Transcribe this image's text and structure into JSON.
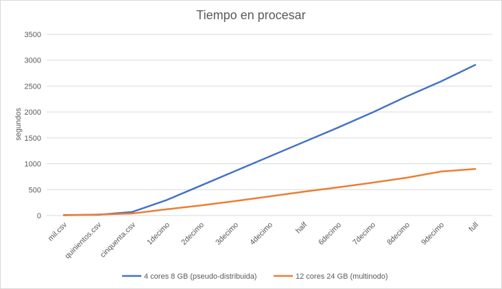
{
  "chart_data": {
    "type": "line",
    "title": "Tiempo en procesar",
    "xlabel": "",
    "ylabel": "segundos",
    "ylim": [
      0,
      3500
    ],
    "yticks": [
      0,
      500,
      1000,
      1500,
      2000,
      2500,
      3000,
      3500
    ],
    "grid": true,
    "legend_position": "bottom",
    "categories": [
      "mil.csv",
      "quinientos.csv",
      "cinquenta.csv",
      "1decimo",
      "2decimo",
      "3decimo",
      "4decimo",
      "half",
      "6decimo",
      "7decimo",
      "8decimo",
      "9decimo",
      "full"
    ],
    "series": [
      {
        "name": "4 cores 8 GB (pseudo-distribuida)",
        "color": "#4472c4",
        "values": [
          10,
          15,
          70,
          300,
          580,
          860,
          1140,
          1420,
          1700,
          1990,
          2300,
          2590,
          2910
        ]
      },
      {
        "name": "12 cores 24 GB (multinodo)",
        "color": "#ed7d31",
        "values": [
          5,
          20,
          40,
          120,
          195,
          280,
          370,
          460,
          545,
          635,
          730,
          850,
          900
        ]
      }
    ]
  }
}
